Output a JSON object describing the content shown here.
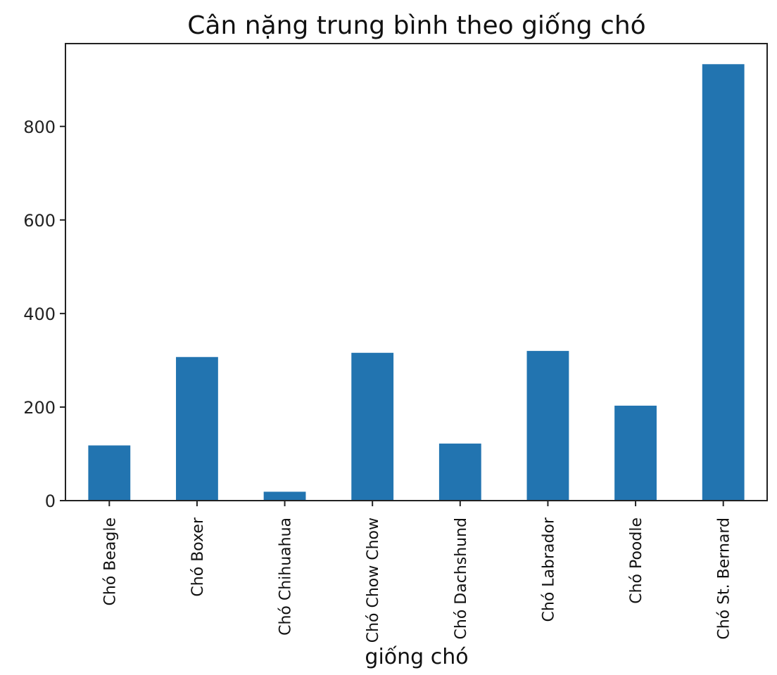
{
  "chart_data": {
    "type": "bar",
    "title": "Cân nặng trung bình theo giống chó",
    "xlabel": "giống chó",
    "ylabel": "",
    "categories": [
      "Chó Beagle",
      "Chó Boxer",
      "Chó Chihuahua",
      "Chó Chow Chow",
      "Chó Dachshund",
      "Chó Labrador",
      "Chó Poodle",
      "Chó St. Bernard"
    ],
    "values": [
      118,
      307,
      19,
      316,
      122,
      320,
      203,
      933
    ],
    "yticks": [
      0,
      200,
      400,
      600,
      800
    ],
    "ylim": [
      0,
      977
    ],
    "grid": false,
    "legend": "none",
    "bar_color": "#2274b0"
  }
}
